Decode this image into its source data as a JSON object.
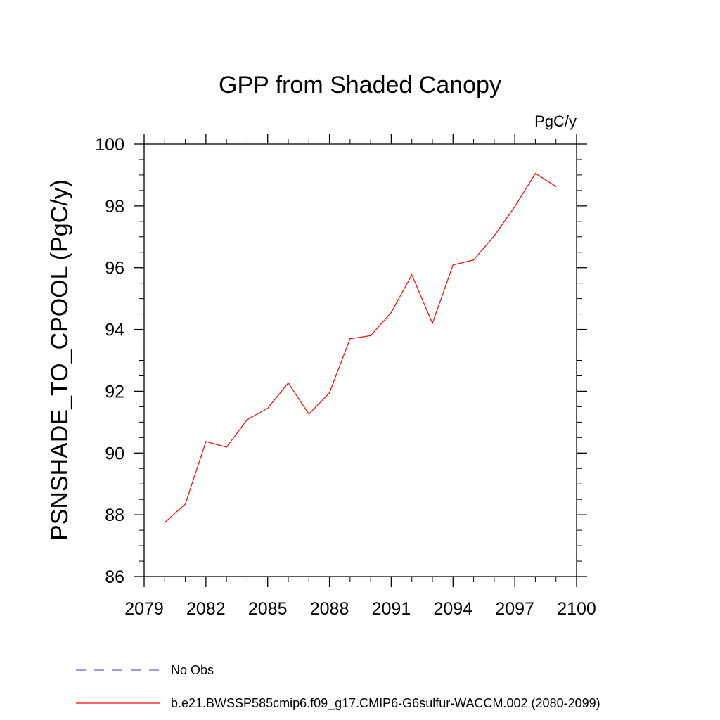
{
  "chart_data": {
    "type": "line",
    "title": "GPP from Shaded Canopy",
    "units_label": "PgC/y",
    "xlabel": "",
    "ylabel": "PSNSHADE_TO_CPOOL  (PgC/y)",
    "xlim": [
      2079,
      2100
    ],
    "ylim": [
      86,
      100
    ],
    "xticks": [
      2079,
      2082,
      2085,
      2088,
      2091,
      2094,
      2097,
      2100
    ],
    "yticks": [
      86,
      88,
      90,
      92,
      94,
      96,
      98,
      100
    ],
    "grid": false,
    "legend_position": "bottom",
    "series": [
      {
        "name": "No Obs",
        "color": "#6a5acd",
        "style": "dashed",
        "x": [],
        "y": []
      },
      {
        "name": "b.e21.BWSSP585cmip6.f09_g17.CMIP6-G6sulfur-WACCM.002 (2080-2099)",
        "color": "#ff0000",
        "style": "solid",
        "x": [
          2080,
          2081,
          2082,
          2083,
          2084,
          2085,
          2086,
          2087,
          2088,
          2089,
          2090,
          2091,
          2092,
          2093,
          2094,
          2095,
          2096,
          2097,
          2098,
          2099
        ],
        "y": [
          87.75,
          88.35,
          90.37,
          90.19,
          91.08,
          91.45,
          92.27,
          91.26,
          91.95,
          93.7,
          93.8,
          94.55,
          95.77,
          94.2,
          96.09,
          96.25,
          97.03,
          97.98,
          99.05,
          98.63
        ]
      }
    ]
  }
}
